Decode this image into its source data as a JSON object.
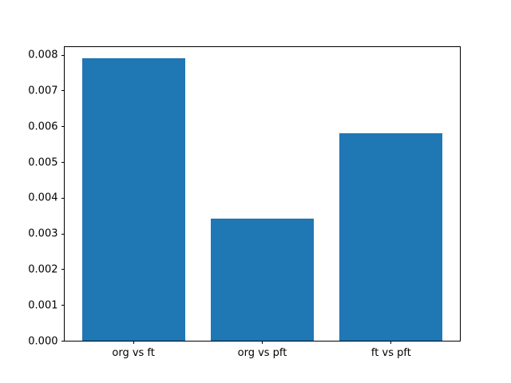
{
  "chart_data": {
    "type": "bar",
    "categories": [
      "org vs ft",
      "org vs pft",
      "ft vs pft"
    ],
    "values": [
      0.0079,
      0.0034,
      0.0058
    ],
    "title": "",
    "xlabel": "",
    "ylabel": "",
    "ylim": [
      0,
      0.00826
    ],
    "xlim": [
      -0.54,
      2.54
    ],
    "yticks": [
      0.0,
      0.001,
      0.002,
      0.003,
      0.004,
      0.005,
      0.006,
      0.007,
      0.008
    ],
    "ytick_decimals": 3,
    "bar_width_units": 0.8,
    "bar_color": "#1f77b4",
    "axis_color": "#000000",
    "background_color": "#ffffff",
    "grid": false,
    "legend": false
  }
}
